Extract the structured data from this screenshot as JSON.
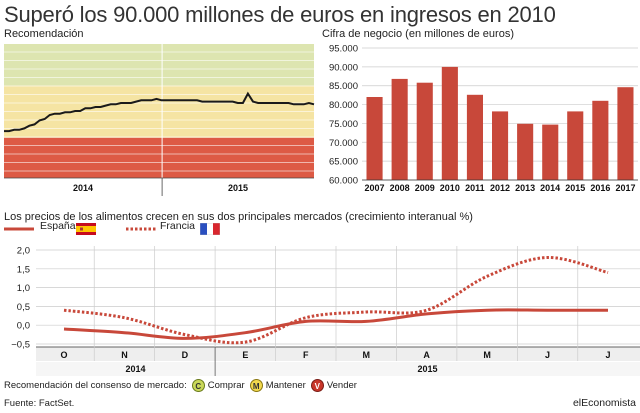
{
  "headline": "Superó los 90.000 millones de euros en ingresos en 2010",
  "colors": {
    "bar": "#c8483a",
    "line": "#c8483a",
    "green_zone": "#dde5b0",
    "yellow_zone": "#f5e4a3",
    "red_zone": "#dd5a45",
    "price_line": "#1a1a1a"
  },
  "chart_data": [
    {
      "type": "line",
      "title": "Recomendación",
      "x_labels": [
        "2014",
        "2015"
      ],
      "zones": [
        {
          "name": "Comprar",
          "color": "green"
        },
        {
          "name": "Mantener",
          "color": "yellow"
        },
        {
          "name": "Vender",
          "color": "red"
        }
      ],
      "y": [
        0.35,
        0.35,
        0.36,
        0.36,
        0.37,
        0.39,
        0.4,
        0.43,
        0.44,
        0.47,
        0.48,
        0.48,
        0.49,
        0.49,
        0.5,
        0.5,
        0.52,
        0.52,
        0.53,
        0.53,
        0.54,
        0.55,
        0.55,
        0.56,
        0.56,
        0.56,
        0.57,
        0.58,
        0.58,
        0.58,
        0.59,
        0.58,
        0.58,
        0.58,
        0.58,
        0.58,
        0.58,
        0.58,
        0.58,
        0.57,
        0.57,
        0.57,
        0.57,
        0.57,
        0.57,
        0.57,
        0.56,
        0.56,
        0.63,
        0.57,
        0.56,
        0.56,
        0.56,
        0.56,
        0.56,
        0.56,
        0.56,
        0.55,
        0.55,
        0.55,
        0.56,
        0.55
      ],
      "y_range": [
        0,
        1
      ]
    },
    {
      "type": "bar",
      "title": "Cifra de negocio (en millones de euros)",
      "categories": [
        "2007",
        "2008",
        "2009",
        "2010",
        "2011",
        "2012",
        "2013",
        "2014",
        "2015",
        "2016",
        "2017"
      ],
      "values": [
        82000,
        86800,
        85800,
        90000,
        82600,
        78200,
        74900,
        74700,
        78200,
        81000,
        84600
      ],
      "yticks": [
        "60.000",
        "65.000",
        "70.000",
        "75.000",
        "80.000",
        "85.000",
        "90.000",
        "95.000"
      ],
      "ylim": [
        60000,
        95000
      ]
    },
    {
      "type": "line",
      "title": "Los precios de los alimentos crecen en sus dos principales mercados (crecimiento interanual %)",
      "categories": [
        "O",
        "N",
        "D",
        "E",
        "F",
        "M",
        "A",
        "M",
        "J",
        "J"
      ],
      "year_labels": [
        "2014",
        "2015"
      ],
      "yticks": [
        "2,0",
        "1,5",
        "1,0",
        "0,5",
        "0,0",
        "−0,5"
      ],
      "ylim": [
        -0.5,
        2.0
      ],
      "series": [
        {
          "name": "España",
          "style": "solid",
          "values": [
            -0.1,
            -0.2,
            -0.35,
            -0.2,
            0.1,
            0.1,
            0.3,
            0.4,
            0.4,
            0.4
          ]
        },
        {
          "name": "Francia",
          "style": "dotted",
          "values": [
            0.4,
            0.2,
            -0.25,
            -0.45,
            0.2,
            0.35,
            0.4,
            1.3,
            1.8,
            1.4
          ]
        }
      ]
    }
  ],
  "legend_bottom": {
    "prefix": "Recomendación del consenso de mercado:",
    "items": [
      {
        "badge": "C",
        "label": "Comprar"
      },
      {
        "badge": "M",
        "label": "Mantener"
      },
      {
        "badge": "V",
        "label": "Vender"
      }
    ]
  },
  "source": "Fuente: FactSet.",
  "brand": "elEconomista"
}
